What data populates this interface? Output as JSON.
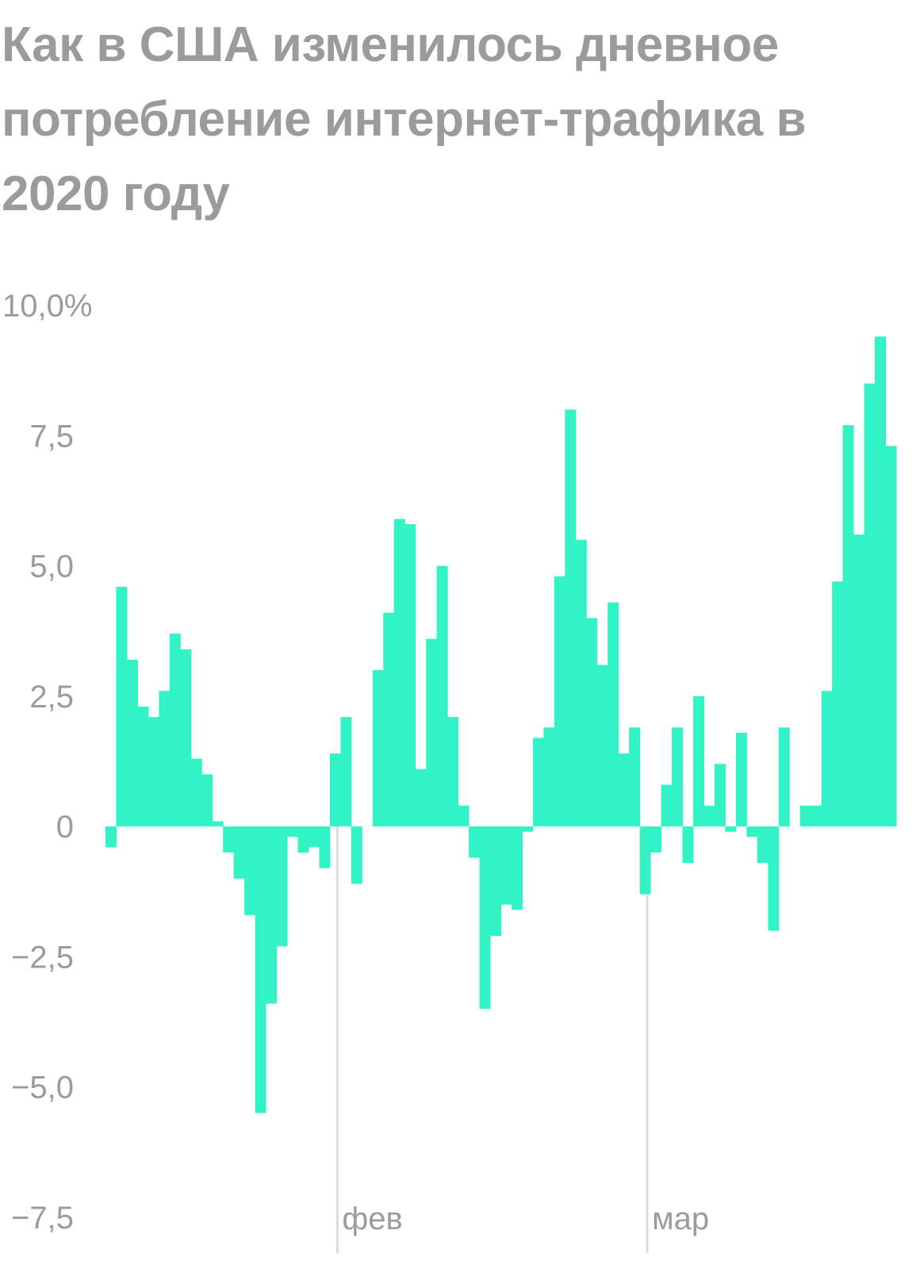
{
  "colors": {
    "bar": "#32f3c5",
    "text": "#9b9b9b",
    "month_line": "#dcdcdc"
  },
  "chart_data": {
    "type": "bar",
    "title": "Как в США изменилось дневное потребление интернет-трафика в 2020 году",
    "y_tick_labels": [
      "10,0%",
      "7,5",
      "5,0",
      "2,5",
      "0",
      "−2,5",
      "−5,0",
      "−7,5"
    ],
    "y_ticks": [
      10,
      7.5,
      5,
      2.5,
      0,
      -2.5,
      -5,
      -7.5
    ],
    "ylim": [
      -7.5,
      10
    ],
    "month_labels": [
      {
        "label": "фев",
        "day": 22
      },
      {
        "label": "мар",
        "day": 51
      }
    ],
    "values": [
      -0.4,
      4.6,
      3.2,
      2.3,
      2.1,
      2.6,
      3.7,
      3.4,
      1.3,
      1.0,
      0.1,
      -0.5,
      -1.0,
      -1.7,
      -5.5,
      -3.4,
      -2.3,
      -0.2,
      -0.5,
      -0.4,
      -0.8,
      1.4,
      2.1,
      -1.1,
      null,
      3.0,
      4.1,
      5.9,
      5.8,
      1.1,
      3.6,
      5.0,
      2.1,
      0.4,
      -0.6,
      -3.5,
      -2.1,
      -1.5,
      -1.6,
      -0.1,
      1.7,
      1.9,
      4.8,
      8.0,
      5.5,
      4.0,
      3.1,
      4.3,
      1.4,
      1.9,
      -1.3,
      -0.5,
      0.8,
      1.9,
      -0.7,
      2.5,
      0.4,
      1.2,
      -0.1,
      1.8,
      -0.2,
      -0.7,
      -2.0,
      1.9,
      null,
      0.4,
      0.4,
      2.6,
      4.7,
      7.7,
      5.6,
      8.5,
      9.4,
      7.3
    ]
  }
}
